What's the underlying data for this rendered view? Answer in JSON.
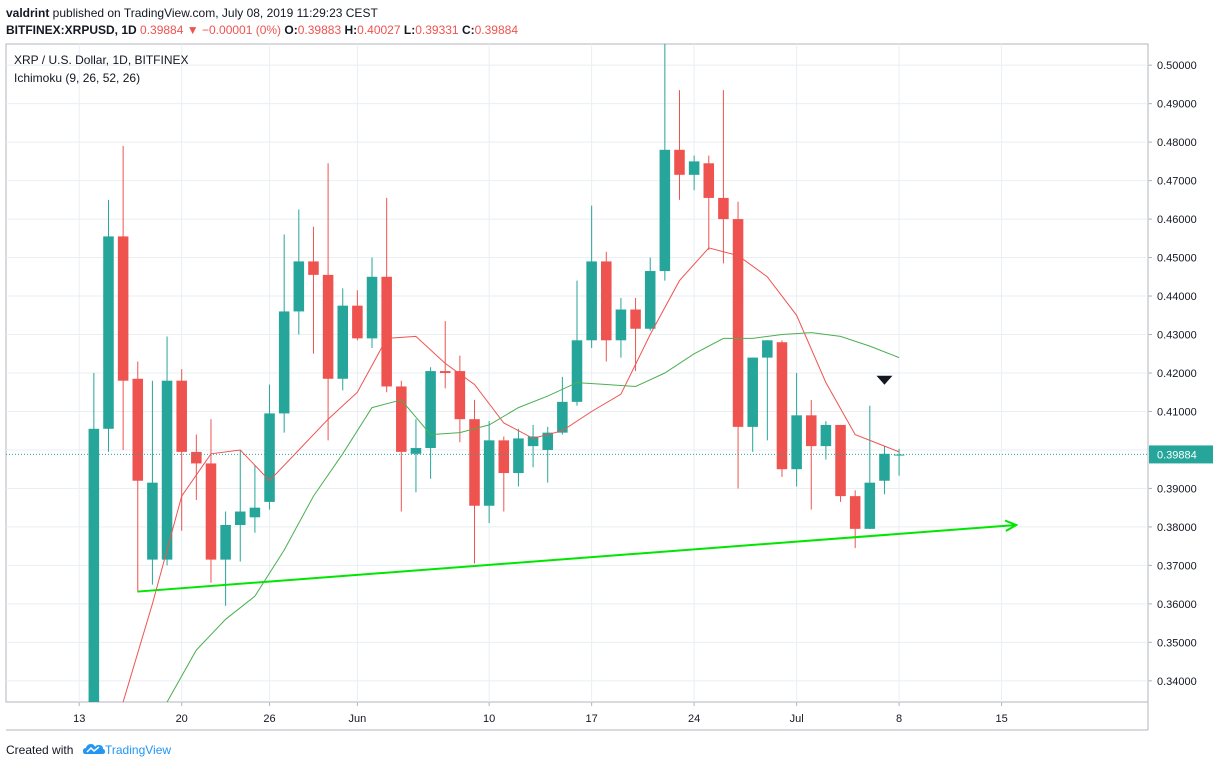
{
  "header": {
    "author": "valdrint",
    "published_text": " published on TradingView.com, July 08, 2019 11:29:23 CEST"
  },
  "ohlc_row": {
    "symbol": "BITFINEX:XRPUSD, 1D",
    "last": "0.39884",
    "change": "−0.00001 (0%)",
    "o_label": "O:",
    "o": "0.39883",
    "h_label": "H:",
    "h": "0.40027",
    "l_label": "L:",
    "l": "0.39331",
    "c_label": "C:",
    "c": "0.39884"
  },
  "legend": {
    "title": "XRP / U.S. Dollar, 1D, BITFINEX",
    "indicator": "Ichimoku (9, 26, 52, 26)"
  },
  "footer": {
    "created_with": "Created with",
    "brand": "TradingView"
  },
  "colors": {
    "up": "#26a69a",
    "down": "#ef5350",
    "conversion_line": "#ef5350",
    "base_line": "#4caf50",
    "trendline": "#00e600",
    "grid": "#e9eff3",
    "price_line": "#26a69a"
  },
  "chart_data": {
    "type": "candlestick",
    "symbol": "XRP / U.S. Dollar",
    "timeframe": "1D",
    "exchange": "BITFINEX",
    "y_axis": {
      "ticks": [
        "0.34000",
        "0.35000",
        "0.36000",
        "0.37000",
        "0.38000",
        "0.39000",
        "0.40000",
        "0.41000",
        "0.42000",
        "0.43000",
        "0.44000",
        "0.45000",
        "0.46000",
        "0.47000",
        "0.48000",
        "0.49000",
        "0.50000"
      ],
      "range": [
        0.3345,
        0.5055
      ]
    },
    "x_axis": {
      "ticks": [
        {
          "label": "13",
          "date": "2019-05-13"
        },
        {
          "label": "20",
          "date": "2019-05-20"
        },
        {
          "label": "26",
          "date": "2019-05-26"
        },
        {
          "label": "Jun",
          "date": "2019-06-01"
        },
        {
          "label": "10",
          "date": "2019-06-10"
        },
        {
          "label": "17",
          "date": "2019-06-17"
        },
        {
          "label": "24",
          "date": "2019-06-24"
        },
        {
          "label": "Jul",
          "date": "2019-07-01"
        },
        {
          "label": "8",
          "date": "2019-07-08"
        },
        {
          "label": "15",
          "date": "2019-07-15"
        }
      ],
      "range": [
        "2019-05-08",
        "2019-07-25"
      ]
    },
    "last_price_label": "0.39884",
    "candles": [
      {
        "date": "2019-05-14",
        "o": 0.33,
        "h": 0.42,
        "l": 0.33,
        "c": 0.4055
      },
      {
        "date": "2019-05-15",
        "o": 0.4055,
        "h": 0.465,
        "l": 0.3995,
        "c": 0.4555
      },
      {
        "date": "2019-05-16",
        "o": 0.4555,
        "h": 0.479,
        "l": 0.4,
        "c": 0.418
      },
      {
        "date": "2019-05-17",
        "o": 0.4185,
        "h": 0.423,
        "l": 0.363,
        "c": 0.392
      },
      {
        "date": "2019-05-18",
        "o": 0.3715,
        "h": 0.418,
        "l": 0.365,
        "c": 0.3915
      },
      {
        "date": "2019-05-19",
        "o": 0.3715,
        "h": 0.4295,
        "l": 0.37,
        "c": 0.418
      },
      {
        "date": "2019-05-20",
        "o": 0.418,
        "h": 0.421,
        "l": 0.379,
        "c": 0.3995
      },
      {
        "date": "2019-05-21",
        "o": 0.3995,
        "h": 0.404,
        "l": 0.387,
        "c": 0.3965
      },
      {
        "date": "2019-05-22",
        "o": 0.3965,
        "h": 0.408,
        "l": 0.3655,
        "c": 0.3715
      },
      {
        "date": "2019-05-23",
        "o": 0.3715,
        "h": 0.384,
        "l": 0.3595,
        "c": 0.3805
      },
      {
        "date": "2019-05-24",
        "o": 0.3805,
        "h": 0.4,
        "l": 0.371,
        "c": 0.384
      },
      {
        "date": "2019-05-25",
        "o": 0.3825,
        "h": 0.396,
        "l": 0.3785,
        "c": 0.385
      },
      {
        "date": "2019-05-26",
        "o": 0.3865,
        "h": 0.417,
        "l": 0.3845,
        "c": 0.4095
      },
      {
        "date": "2019-05-27",
        "o": 0.4095,
        "h": 0.456,
        "l": 0.4045,
        "c": 0.436
      },
      {
        "date": "2019-05-28",
        "o": 0.436,
        "h": 0.4625,
        "l": 0.43,
        "c": 0.449
      },
      {
        "date": "2019-05-29",
        "o": 0.449,
        "h": 0.458,
        "l": 0.425,
        "c": 0.4455
      },
      {
        "date": "2019-05-30",
        "o": 0.4455,
        "h": 0.4745,
        "l": 0.4025,
        "c": 0.4185
      },
      {
        "date": "2019-05-31",
        "o": 0.4185,
        "h": 0.442,
        "l": 0.4155,
        "c": 0.4375
      },
      {
        "date": "2019-06-01",
        "o": 0.4375,
        "h": 0.4415,
        "l": 0.4285,
        "c": 0.429
      },
      {
        "date": "2019-06-02",
        "o": 0.429,
        "h": 0.45,
        "l": 0.4265,
        "c": 0.445
      },
      {
        "date": "2019-06-03",
        "o": 0.445,
        "h": 0.4655,
        "l": 0.415,
        "c": 0.4165
      },
      {
        "date": "2019-06-04",
        "o": 0.4165,
        "h": 0.418,
        "l": 0.384,
        "c": 0.3995
      },
      {
        "date": "2019-06-05",
        "o": 0.399,
        "h": 0.408,
        "l": 0.389,
        "c": 0.4005
      },
      {
        "date": "2019-06-06",
        "o": 0.4005,
        "h": 0.4215,
        "l": 0.3925,
        "c": 0.4205
      },
      {
        "date": "2019-06-07",
        "o": 0.4205,
        "h": 0.4335,
        "l": 0.416,
        "c": 0.42
      },
      {
        "date": "2019-06-08",
        "o": 0.4205,
        "h": 0.4245,
        "l": 0.402,
        "c": 0.408
      },
      {
        "date": "2019-06-09",
        "o": 0.408,
        "h": 0.413,
        "l": 0.3705,
        "c": 0.3855
      },
      {
        "date": "2019-06-10",
        "o": 0.3855,
        "h": 0.4075,
        "l": 0.381,
        "c": 0.4025
      },
      {
        "date": "2019-06-11",
        "o": 0.4025,
        "h": 0.4035,
        "l": 0.384,
        "c": 0.394
      },
      {
        "date": "2019-06-12",
        "o": 0.394,
        "h": 0.4055,
        "l": 0.3905,
        "c": 0.403
      },
      {
        "date": "2019-06-13",
        "o": 0.401,
        "h": 0.4065,
        "l": 0.3955,
        "c": 0.4035
      },
      {
        "date": "2019-06-14",
        "o": 0.4,
        "h": 0.406,
        "l": 0.3915,
        "c": 0.4045
      },
      {
        "date": "2019-06-15",
        "o": 0.4045,
        "h": 0.419,
        "l": 0.404,
        "c": 0.4125
      },
      {
        "date": "2019-06-16",
        "o": 0.4125,
        "h": 0.444,
        "l": 0.4115,
        "c": 0.4285
      },
      {
        "date": "2019-06-17",
        "o": 0.4285,
        "h": 0.4635,
        "l": 0.4265,
        "c": 0.449
      },
      {
        "date": "2019-06-18",
        "o": 0.449,
        "h": 0.4515,
        "l": 0.423,
        "c": 0.4285
      },
      {
        "date": "2019-06-19",
        "o": 0.4285,
        "h": 0.4395,
        "l": 0.424,
        "c": 0.4365
      },
      {
        "date": "2019-06-20",
        "o": 0.4365,
        "h": 0.4395,
        "l": 0.4205,
        "c": 0.4315
      },
      {
        "date": "2019-06-21",
        "o": 0.4315,
        "h": 0.45,
        "l": 0.431,
        "c": 0.4465
      },
      {
        "date": "2019-06-22",
        "o": 0.4465,
        "h": 0.506,
        "l": 0.444,
        "c": 0.478
      },
      {
        "date": "2019-06-23",
        "o": 0.478,
        "h": 0.4935,
        "l": 0.465,
        "c": 0.4715
      },
      {
        "date": "2019-06-24",
        "o": 0.4715,
        "h": 0.4765,
        "l": 0.4675,
        "c": 0.475
      },
      {
        "date": "2019-06-25",
        "o": 0.4745,
        "h": 0.4765,
        "l": 0.452,
        "c": 0.4655
      },
      {
        "date": "2019-06-26",
        "o": 0.4655,
        "h": 0.4935,
        "l": 0.4485,
        "c": 0.46
      },
      {
        "date": "2019-06-27",
        "o": 0.46,
        "h": 0.4645,
        "l": 0.39,
        "c": 0.406
      },
      {
        "date": "2019-06-28",
        "o": 0.406,
        "h": 0.424,
        "l": 0.3995,
        "c": 0.424
      },
      {
        "date": "2019-06-29",
        "o": 0.424,
        "h": 0.4285,
        "l": 0.4025,
        "c": 0.4285
      },
      {
        "date": "2019-06-30",
        "o": 0.428,
        "h": 0.4285,
        "l": 0.393,
        "c": 0.395
      },
      {
        "date": "2019-07-01",
        "o": 0.395,
        "h": 0.42,
        "l": 0.3905,
        "c": 0.409
      },
      {
        "date": "2019-07-02",
        "o": 0.409,
        "h": 0.413,
        "l": 0.3845,
        "c": 0.401
      },
      {
        "date": "2019-07-03",
        "o": 0.401,
        "h": 0.4075,
        "l": 0.3975,
        "c": 0.4065
      },
      {
        "date": "2019-07-04",
        "o": 0.4065,
        "h": 0.4065,
        "l": 0.3865,
        "c": 0.388
      },
      {
        "date": "2019-07-05",
        "o": 0.388,
        "h": 0.3895,
        "l": 0.3745,
        "c": 0.3795
      },
      {
        "date": "2019-07-06",
        "o": 0.3795,
        "h": 0.4115,
        "l": 0.3795,
        "c": 0.3915
      },
      {
        "date": "2019-07-07",
        "o": 0.392,
        "h": 0.401,
        "l": 0.3885,
        "c": 0.399
      },
      {
        "date": "2019-07-08",
        "o": 0.3988,
        "h": 0.4003,
        "l": 0.3933,
        "c": 0.3988
      }
    ],
    "conversion_line": [
      {
        "date": "2019-05-16",
        "v": 0.332
      },
      {
        "date": "2019-05-18",
        "v": 0.36
      },
      {
        "date": "2019-05-20",
        "v": 0.388
      },
      {
        "date": "2019-05-22",
        "v": 0.399
      },
      {
        "date": "2019-05-24",
        "v": 0.4
      },
      {
        "date": "2019-05-26",
        "v": 0.392
      },
      {
        "date": "2019-05-28",
        "v": 0.4
      },
      {
        "date": "2019-05-30",
        "v": 0.408
      },
      {
        "date": "2019-06-01",
        "v": 0.415
      },
      {
        "date": "2019-06-03",
        "v": 0.429
      },
      {
        "date": "2019-06-05",
        "v": 0.4295
      },
      {
        "date": "2019-06-07",
        "v": 0.4225
      },
      {
        "date": "2019-06-09",
        "v": 0.417
      },
      {
        "date": "2019-06-11",
        "v": 0.407
      },
      {
        "date": "2019-06-13",
        "v": 0.403
      },
      {
        "date": "2019-06-15",
        "v": 0.405
      },
      {
        "date": "2019-06-17",
        "v": 0.41
      },
      {
        "date": "2019-06-19",
        "v": 0.4145
      },
      {
        "date": "2019-06-21",
        "v": 0.43
      },
      {
        "date": "2019-06-23",
        "v": 0.444
      },
      {
        "date": "2019-06-25",
        "v": 0.4525
      },
      {
        "date": "2019-06-27",
        "v": 0.4505
      },
      {
        "date": "2019-06-29",
        "v": 0.445
      },
      {
        "date": "2019-07-01",
        "v": 0.435
      },
      {
        "date": "2019-07-03",
        "v": 0.4175
      },
      {
        "date": "2019-07-05",
        "v": 0.404
      },
      {
        "date": "2019-07-07",
        "v": 0.401
      },
      {
        "date": "2019-07-08",
        "v": 0.3995
      }
    ],
    "base_line": [
      {
        "date": "2019-05-19",
        "v": 0.3345
      },
      {
        "date": "2019-05-21",
        "v": 0.348
      },
      {
        "date": "2019-05-23",
        "v": 0.356
      },
      {
        "date": "2019-05-25",
        "v": 0.362
      },
      {
        "date": "2019-05-27",
        "v": 0.374
      },
      {
        "date": "2019-05-29",
        "v": 0.388
      },
      {
        "date": "2019-05-31",
        "v": 0.399
      },
      {
        "date": "2019-06-02",
        "v": 0.411
      },
      {
        "date": "2019-06-04",
        "v": 0.413
      },
      {
        "date": "2019-06-06",
        "v": 0.404
      },
      {
        "date": "2019-06-08",
        "v": 0.4045
      },
      {
        "date": "2019-06-10",
        "v": 0.4065
      },
      {
        "date": "2019-06-12",
        "v": 0.411
      },
      {
        "date": "2019-06-14",
        "v": 0.414
      },
      {
        "date": "2019-06-16",
        "v": 0.4175
      },
      {
        "date": "2019-06-18",
        "v": 0.417
      },
      {
        "date": "2019-06-20",
        "v": 0.4165
      },
      {
        "date": "2019-06-22",
        "v": 0.42
      },
      {
        "date": "2019-06-24",
        "v": 0.425
      },
      {
        "date": "2019-06-26",
        "v": 0.429
      },
      {
        "date": "2019-06-28",
        "v": 0.429
      },
      {
        "date": "2019-06-30",
        "v": 0.43
      },
      {
        "date": "2019-07-02",
        "v": 0.4305
      },
      {
        "date": "2019-07-04",
        "v": 0.4295
      },
      {
        "date": "2019-07-06",
        "v": 0.427
      },
      {
        "date": "2019-07-08",
        "v": 0.424
      }
    ],
    "trendline": {
      "from": {
        "date": "2019-05-17",
        "v": 0.3632
      },
      "to": {
        "date": "2019-07-16",
        "v": 0.3805
      },
      "arrow": true
    },
    "marker": {
      "type": "down-triangle",
      "date": "2019-07-06",
      "v": 0.418
    }
  }
}
